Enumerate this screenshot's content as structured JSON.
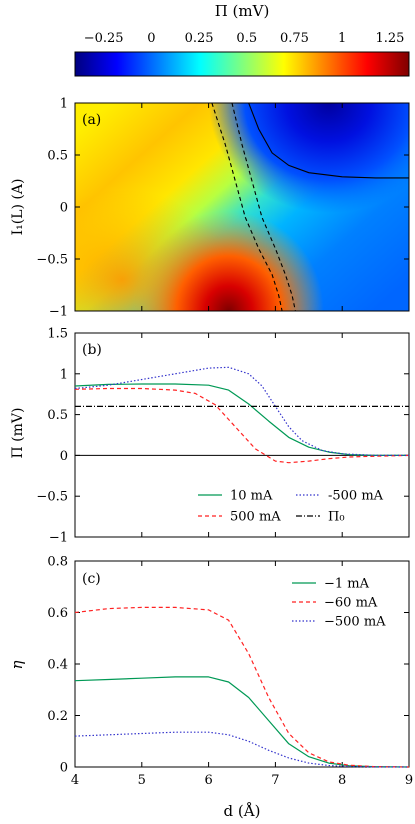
{
  "colorbar": {
    "title": "Π (mV)",
    "tick_labels": [
      "−0.25",
      "0",
      "0.25",
      "0.5",
      "0.75",
      "1",
      "1.25"
    ],
    "tick_values": [
      -0.25,
      0,
      0.25,
      0.5,
      0.75,
      1,
      1.25
    ],
    "range": [
      -0.4,
      1.35
    ],
    "colormap": [
      "#00007f",
      "#0000ff",
      "#007fff",
      "#00ffff",
      "#7fff7f",
      "#ffff00",
      "#ff7f00",
      "#ff0000",
      "#7f0000"
    ]
  },
  "chart_data": [
    {
      "panel": "(a)",
      "type": "heatmap",
      "xlim": [
        4,
        9
      ],
      "ylim": [
        -1,
        1
      ],
      "ylabel": "I₁(L) (A)",
      "y_tick_labels": [
        "1",
        "0.5",
        "0",
        "−0.5",
        "−1"
      ],
      "y_tick_values": [
        1,
        0.5,
        0,
        -0.5,
        -1
      ],
      "contour_dashed_1": {
        "x": [
          6.05,
          6.25,
          6.4,
          6.55,
          6.75,
          6.95,
          7.05,
          7.1
        ],
        "y": [
          1,
          0.6,
          0.25,
          -0.1,
          -0.4,
          -0.65,
          -0.85,
          -1
        ]
      },
      "contour_dashed_2": {
        "x": [
          6.35,
          6.5,
          6.65,
          6.8,
          7.0,
          7.15,
          7.25,
          7.3
        ],
        "y": [
          1,
          0.6,
          0.25,
          -0.1,
          -0.4,
          -0.65,
          -0.85,
          -1
        ]
      },
      "contour_solid": {
        "x": [
          6.6,
          6.75,
          6.95,
          7.2,
          7.5,
          8.0,
          8.5,
          9.0
        ],
        "y": [
          1,
          0.75,
          0.52,
          0.4,
          0.33,
          0.29,
          0.28,
          0.28
        ]
      }
    },
    {
      "panel": "(b)",
      "type": "line",
      "xlim": [
        4,
        9
      ],
      "ylim": [
        -1,
        1.5
      ],
      "ylabel": "Π (mV)",
      "y_tick_labels": [
        "1.5",
        "1",
        "0.5",
        "0",
        "−0.5",
        "−1"
      ],
      "y_tick_values": [
        1.5,
        1,
        0.5,
        0,
        -0.5,
        -1
      ],
      "hline_zero": 0,
      "series": [
        {
          "name": "10 mA",
          "color": "#009955",
          "dash": "",
          "x": [
            4,
            4.5,
            5,
            5.5,
            6,
            6.3,
            6.6,
            6.9,
            7.2,
            7.5,
            7.8,
            8.1,
            8.5,
            9
          ],
          "y": [
            0.85,
            0.87,
            0.875,
            0.875,
            0.86,
            0.8,
            0.63,
            0.42,
            0.22,
            0.1,
            0.04,
            0.01,
            0,
            0
          ]
        },
        {
          "name": "500 mA",
          "color": "#ff2222",
          "dash": "4,3",
          "x": [
            4,
            4.5,
            5,
            5.5,
            5.8,
            6.1,
            6.4,
            6.7,
            7.0,
            7.2,
            7.5,
            7.8,
            8.1,
            8.5,
            9
          ],
          "y": [
            0.81,
            0.82,
            0.82,
            0.8,
            0.76,
            0.62,
            0.35,
            0.08,
            -0.07,
            -0.09,
            -0.07,
            -0.04,
            -0.02,
            -0.01,
            0
          ]
        },
        {
          "name": "-500 mA",
          "color": "#3333cc",
          "dash": "1.5,2",
          "x": [
            4,
            4.5,
            5,
            5.5,
            6,
            6.3,
            6.6,
            6.8,
            7.0,
            7.2,
            7.4,
            7.7,
            8.0,
            8.5,
            9
          ],
          "y": [
            0.82,
            0.86,
            0.93,
            1.0,
            1.07,
            1.08,
            1.0,
            0.85,
            0.6,
            0.35,
            0.18,
            0.06,
            0.02,
            0,
            0
          ]
        },
        {
          "name": "Π₀",
          "color": "#000000",
          "dash": "6,2,1,2",
          "x": [
            4,
            9
          ],
          "y": [
            0.6,
            0.6
          ]
        }
      ],
      "legend_placement": "bottom-right"
    },
    {
      "panel": "(c)",
      "type": "line",
      "xlim": [
        4,
        9
      ],
      "ylim": [
        0,
        0.8
      ],
      "xlabel": "d (Å)",
      "ylabel": "η",
      "x_tick_labels": [
        "4",
        "5",
        "6",
        "7",
        "8",
        "9"
      ],
      "x_tick_values": [
        4,
        5,
        6,
        7,
        8,
        9
      ],
      "y_tick_labels": [
        "0.8",
        "0.6",
        "0.4",
        "0.2",
        "0"
      ],
      "y_tick_values": [
        0.8,
        0.6,
        0.4,
        0.2,
        0
      ],
      "series": [
        {
          "name": "−1 mA",
          "color": "#009955",
          "dash": "",
          "x": [
            4,
            4.5,
            5,
            5.5,
            6,
            6.3,
            6.6,
            6.9,
            7.2,
            7.5,
            7.8,
            8.1,
            8.5,
            9
          ],
          "y": [
            0.335,
            0.34,
            0.345,
            0.35,
            0.35,
            0.33,
            0.27,
            0.18,
            0.09,
            0.04,
            0.015,
            0.005,
            0.001,
            0
          ]
        },
        {
          "name": "−60 mA",
          "color": "#ff2222",
          "dash": "4,3",
          "x": [
            4,
            4.5,
            5,
            5.5,
            6,
            6.3,
            6.6,
            6.9,
            7.2,
            7.5,
            7.8,
            8.1,
            8.5,
            9
          ],
          "y": [
            0.6,
            0.615,
            0.62,
            0.62,
            0.61,
            0.57,
            0.44,
            0.27,
            0.13,
            0.055,
            0.02,
            0.007,
            0.001,
            0
          ]
        },
        {
          "name": "−500 mA",
          "color": "#3333cc",
          "dash": "1.5,2",
          "x": [
            4,
            4.5,
            5,
            5.5,
            6,
            6.3,
            6.6,
            6.9,
            7.2,
            7.5,
            7.8,
            8.1,
            8.5,
            9
          ],
          "y": [
            0.12,
            0.125,
            0.13,
            0.135,
            0.135,
            0.125,
            0.1,
            0.065,
            0.035,
            0.015,
            0.006,
            0.002,
            0,
            0
          ]
        }
      ],
      "legend_placement": "top-right"
    }
  ]
}
